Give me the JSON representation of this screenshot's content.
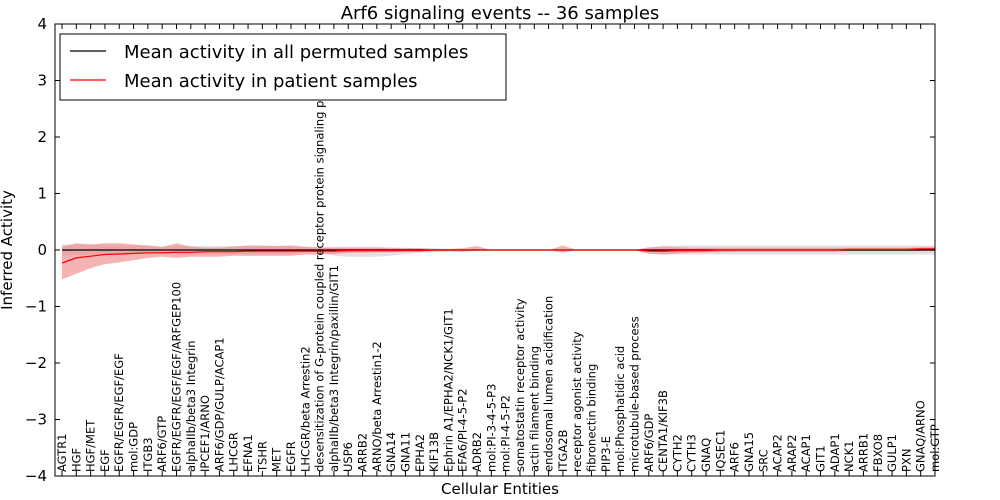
{
  "chart_data": {
    "type": "line",
    "title": "Arf6 signaling events -- 36 samples",
    "xlabel": "Cellular Entities",
    "ylabel": "Inferred Activity",
    "ylim": [
      -4,
      4
    ],
    "yticks": [
      -4,
      -3,
      -2,
      -1,
      0,
      1,
      2,
      3,
      4
    ],
    "ytick_labels": [
      "−4",
      "−3",
      "−2",
      "−1",
      "0",
      "1",
      "2",
      "3",
      "4"
    ],
    "grid": false,
    "legend_position": "top-left",
    "categories": [
      "AGTR1",
      "HGF",
      "HGF/MET",
      "EGF",
      "EGFR/EGFR/EGF/EGF",
      "mol:GDP",
      "ITGB3",
      "ARF6/GTP",
      "EGFR/EGFR/EGF/EGF/ARFGEP100",
      "alphaIIb/beta3 Integrin",
      "IPCEF1/ARNO",
      "ARF6/GDP/GULP/ACAP1",
      "LHCGR",
      "EFNA1",
      "TSHR",
      "MET",
      "EGFR",
      "LHCGR/beta Arrestin2",
      "desensitization of G-protein coupled receptor protein signaling pathway",
      "alphaIIb/beta3 Integrin/paxillin/GIT1",
      "USP6",
      "ARRB2",
      "ARNO/beta Arrestin1-2",
      "GNA14",
      "GNA11",
      "EPHA2",
      "KIF13B",
      "Ephrin A1/EPHA2/NCK1/GIT1",
      "EFA6/PI-4-5-P2",
      "ADRB2",
      "mol:PI-3-4-5-P3",
      "mol:PI-4-5-P2",
      "somatostatin receptor activity",
      "actin filament binding",
      "endosomal lumen acidification",
      "ITGA2B",
      "receptor agonist activity",
      "fibronectin binding",
      "PIP3-E",
      "mol:Phosphatidic acid",
      "microtubule-based process",
      "ARF6/GDP",
      "CENTA1/KIF3B",
      "CYTH2",
      "CYTH3",
      "GNAQ",
      "IQSEC1",
      "ARF6",
      "GNA15",
      "SRC",
      "ACAP2",
      "ARAP2",
      "ACAP1",
      "GIT1",
      "ADAP1",
      "NCK1",
      "ARRB1",
      "FBXO8",
      "GULP1",
      "PXN",
      "GNAQ/ARNO",
      "mol:GTP"
    ],
    "series": [
      {
        "name": "Mean activity in all permuted samples",
        "color": "#000000",
        "band_color": "#c8c8c8",
        "values": [
          0,
          0,
          0,
          0,
          0,
          0,
          0,
          0,
          0,
          0,
          0,
          0,
          0,
          0,
          0,
          0,
          0,
          0,
          0,
          0,
          0,
          0,
          0,
          0,
          0,
          0,
          0,
          0,
          0,
          0,
          0,
          0,
          0,
          0,
          0,
          0,
          0,
          0,
          0,
          0,
          0,
          0,
          0,
          0,
          0,
          0,
          0,
          0,
          0,
          0,
          0,
          0,
          0,
          0,
          0,
          0,
          0,
          0,
          0,
          0,
          0,
          0
        ],
        "lower": [
          -0.1,
          -0.09,
          -0.09,
          -0.08,
          -0.08,
          -0.08,
          -0.08,
          -0.07,
          -0.07,
          -0.07,
          -0.07,
          -0.07,
          -0.07,
          -0.07,
          -0.07,
          -0.07,
          -0.07,
          -0.05,
          -0.03,
          -0.1,
          -0.12,
          -0.12,
          -0.12,
          -0.1,
          -0.07,
          -0.05,
          -0.04,
          -0.03,
          -0.02,
          -0.02,
          0,
          0,
          0,
          0,
          0,
          0,
          0,
          0,
          0,
          0,
          0,
          -0.03,
          -0.08,
          -0.08,
          -0.08,
          -0.08,
          -0.08,
          -0.08,
          -0.08,
          -0.08,
          -0.08,
          -0.08,
          -0.08,
          -0.08,
          -0.08,
          -0.08,
          -0.08,
          -0.08,
          -0.08,
          -0.08,
          -0.08,
          -0.08
        ],
        "upper": [
          0.1,
          0.09,
          0.09,
          0.08,
          0.08,
          0.08,
          0.08,
          0.07,
          0.07,
          0.07,
          0.07,
          0.07,
          0.07,
          0.07,
          0.07,
          0.07,
          0.07,
          0.05,
          0.03,
          0.06,
          0.06,
          0.06,
          0.06,
          0.05,
          0.04,
          0.03,
          0.03,
          0.02,
          0.02,
          0.02,
          0,
          0,
          0,
          0,
          0,
          0,
          0,
          0,
          0,
          0,
          0,
          0.03,
          0.08,
          0.08,
          0.08,
          0.08,
          0.08,
          0.08,
          0.08,
          0.08,
          0.08,
          0.08,
          0.08,
          0.08,
          0.08,
          0.08,
          0.08,
          0.08,
          0.08,
          0.08,
          0.08,
          0.08
        ]
      },
      {
        "name": "Mean activity in patient samples",
        "color": "#ff0000",
        "band_color": "#f08080",
        "values": [
          -0.23,
          -0.14,
          -0.11,
          -0.08,
          -0.07,
          -0.06,
          -0.05,
          -0.05,
          -0.04,
          -0.04,
          -0.03,
          -0.03,
          -0.03,
          -0.02,
          -0.02,
          -0.02,
          -0.02,
          -0.02,
          -0.02,
          -0.02,
          -0.01,
          -0.01,
          -0.01,
          -0.01,
          -0.01,
          -0.01,
          0,
          0,
          0,
          0,
          0,
          0,
          0,
          0,
          0,
          0,
          0,
          0,
          0,
          0,
          0,
          -0.02,
          -0.02,
          -0.01,
          -0.01,
          -0.01,
          0,
          0,
          0,
          0,
          0,
          0,
          0,
          0,
          0,
          0.01,
          0.01,
          0.01,
          0.01,
          0.01,
          0.02,
          0.02
        ],
        "lower": [
          -0.52,
          -0.42,
          -0.32,
          -0.25,
          -0.22,
          -0.18,
          -0.14,
          -0.12,
          -0.14,
          -0.12,
          -0.12,
          -0.12,
          -0.1,
          -0.1,
          -0.1,
          -0.1,
          -0.1,
          -0.08,
          -0.08,
          -0.07,
          -0.05,
          -0.05,
          -0.04,
          -0.04,
          -0.03,
          -0.03,
          -0.02,
          -0.02,
          -0.03,
          -0.01,
          0,
          0,
          0,
          0,
          0,
          -0.05,
          0,
          0,
          0,
          0,
          0,
          -0.07,
          -0.08,
          -0.06,
          -0.05,
          -0.04,
          -0.04,
          -0.03,
          -0.03,
          -0.03,
          -0.03,
          -0.03,
          -0.03,
          -0.03,
          -0.03,
          -0.02,
          -0.02,
          -0.02,
          -0.02,
          -0.02,
          -0.02,
          -0.02
        ],
        "upper": [
          0.06,
          0.12,
          0.1,
          0.12,
          0.12,
          0.1,
          0.08,
          0.05,
          0.12,
          0.06,
          0.04,
          0.04,
          0.06,
          0.08,
          0.08,
          0.07,
          0.08,
          0.06,
          0.05,
          0.04,
          0.04,
          0.04,
          0.04,
          0.03,
          0.03,
          0.03,
          0.02,
          0.02,
          0.03,
          0.07,
          0,
          0,
          0,
          0,
          0,
          0.08,
          0,
          0,
          0,
          0,
          0,
          0.05,
          0.06,
          0.05,
          0.04,
          0.04,
          0.04,
          0.04,
          0.04,
          0.04,
          0.04,
          0.04,
          0.04,
          0.04,
          0.04,
          0.04,
          0.04,
          0.04,
          0.04,
          0.04,
          0.05,
          0.05
        ]
      }
    ]
  }
}
